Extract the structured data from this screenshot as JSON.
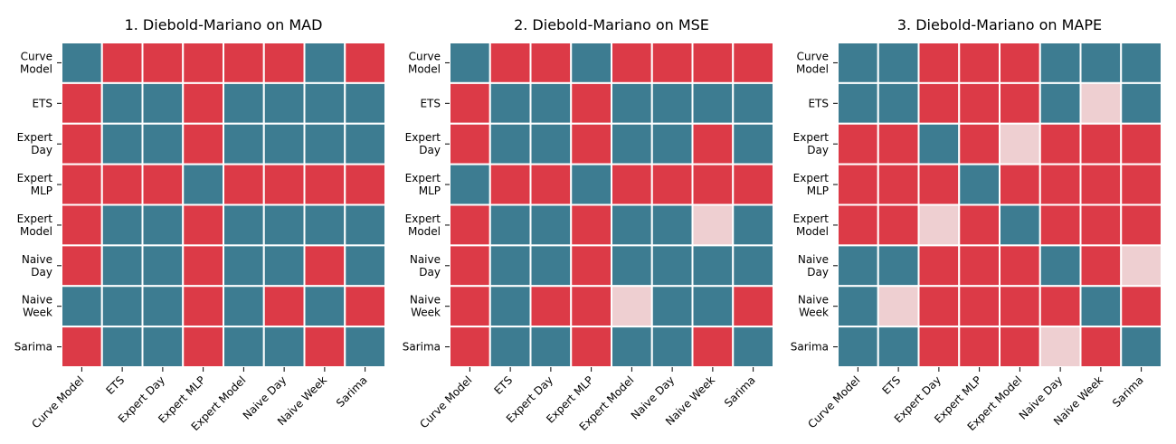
{
  "colors": {
    "red": "#dc3a47",
    "teal": "#3d7c91",
    "pink": "#eecfd1",
    "grid": "#ffffff",
    "text": "#000000"
  },
  "legend": {
    "0": "red",
    "1": "teal",
    "2": "pink"
  },
  "chart_data": [
    {
      "type": "heatmap",
      "title": "1. Diebold-Mariano on MAD",
      "row_labels": [
        [
          "Curve",
          "Model"
        ],
        [
          "ETS"
        ],
        [
          "Expert",
          "Day"
        ],
        [
          "Expert",
          "MLP"
        ],
        [
          "Expert",
          "Model"
        ],
        [
          "Naive",
          "Day"
        ],
        [
          "Naive",
          "Week"
        ],
        [
          "Sarima"
        ]
      ],
      "col_labels": [
        "Curve Model",
        "ETS",
        "Expert Day",
        "Expert MLP",
        "Expert Model",
        "Naive Day",
        "Naive Week",
        "Sarima"
      ],
      "matrix": [
        [
          1,
          0,
          0,
          0,
          0,
          0,
          1,
          0
        ],
        [
          0,
          1,
          1,
          0,
          1,
          1,
          1,
          1
        ],
        [
          0,
          1,
          1,
          0,
          1,
          1,
          1,
          1
        ],
        [
          0,
          0,
          0,
          1,
          0,
          0,
          0,
          0
        ],
        [
          0,
          1,
          1,
          0,
          1,
          1,
          1,
          1
        ],
        [
          0,
          1,
          1,
          0,
          1,
          1,
          0,
          1
        ],
        [
          1,
          1,
          1,
          0,
          1,
          0,
          1,
          0
        ],
        [
          0,
          1,
          1,
          0,
          1,
          1,
          0,
          1
        ]
      ]
    },
    {
      "type": "heatmap",
      "title": "2. Diebold-Mariano on MSE",
      "row_labels": [
        [
          "Curve",
          "Model"
        ],
        [
          "ETS"
        ],
        [
          "Expert",
          "Day"
        ],
        [
          "Expert",
          "MLP"
        ],
        [
          "Expert",
          "Model"
        ],
        [
          "Naive",
          "Day"
        ],
        [
          "Naive",
          "Week"
        ],
        [
          "Sarima"
        ]
      ],
      "col_labels": [
        "Curve Model",
        "ETS",
        "Expert Day",
        "Expert MLP",
        "Expert Model",
        "Naive Day",
        "Naive Week",
        "Sarima"
      ],
      "matrix": [
        [
          1,
          0,
          0,
          1,
          0,
          0,
          0,
          0
        ],
        [
          0,
          1,
          1,
          0,
          1,
          1,
          1,
          1
        ],
        [
          0,
          1,
          1,
          0,
          1,
          1,
          0,
          1
        ],
        [
          1,
          0,
          0,
          1,
          0,
          0,
          0,
          0
        ],
        [
          0,
          1,
          1,
          0,
          1,
          1,
          2,
          1
        ],
        [
          0,
          1,
          1,
          0,
          1,
          1,
          1,
          1
        ],
        [
          0,
          1,
          0,
          0,
          2,
          1,
          1,
          0
        ],
        [
          0,
          1,
          1,
          0,
          1,
          1,
          0,
          1
        ]
      ]
    },
    {
      "type": "heatmap",
      "title": "3. Diebold-Mariano on MAPE",
      "row_labels": [
        [
          "Curve",
          "Model"
        ],
        [
          "ETS"
        ],
        [
          "Expert",
          "Day"
        ],
        [
          "Expert",
          "MLP"
        ],
        [
          "Expert",
          "Model"
        ],
        [
          "Naive",
          "Day"
        ],
        [
          "Naive",
          "Week"
        ],
        [
          "Sarima"
        ]
      ],
      "col_labels": [
        "Curve Model",
        "ETS",
        "Expert Day",
        "Expert MLP",
        "Expert Model",
        "Naive Day",
        "Naive Week",
        "Sarima"
      ],
      "matrix": [
        [
          1,
          1,
          0,
          0,
          0,
          1,
          1,
          1
        ],
        [
          1,
          1,
          0,
          0,
          0,
          1,
          2,
          1
        ],
        [
          0,
          0,
          1,
          0,
          2,
          0,
          0,
          0
        ],
        [
          0,
          0,
          0,
          1,
          0,
          0,
          0,
          0
        ],
        [
          0,
          0,
          2,
          0,
          1,
          0,
          0,
          0
        ],
        [
          1,
          1,
          0,
          0,
          0,
          1,
          0,
          2
        ],
        [
          1,
          2,
          0,
          0,
          0,
          0,
          1,
          0
        ],
        [
          1,
          1,
          0,
          0,
          0,
          2,
          0,
          1
        ]
      ]
    }
  ]
}
